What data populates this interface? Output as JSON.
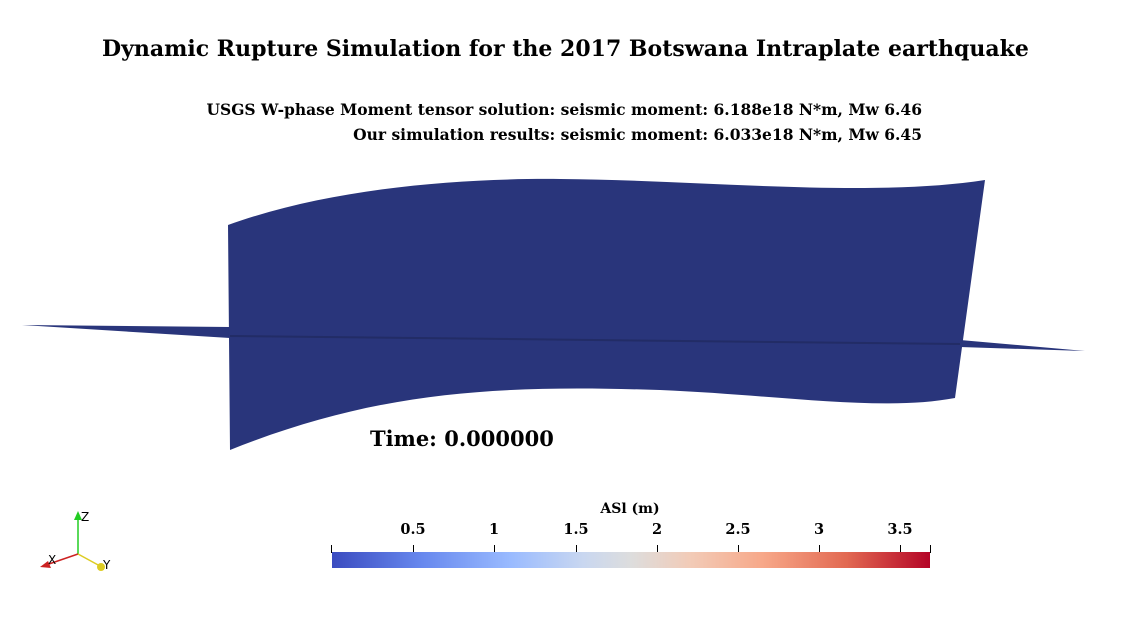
{
  "title": "Dynamic Rupture Simulation for the 2017 Botswana Intraplate earthquake",
  "subtitles": [
    "USGS W-phase Moment tensor solution: seismic moment: 6.188e18 N*m, Mw 6.46",
    "Our simulation results:  seismic moment: 6.033e18 N*m, Mw 6.45"
  ],
  "time_label": "Time: 0.000000",
  "colorbar": {
    "title": "ASl (m)",
    "ticks": [
      "0.5",
      "1",
      "1.5",
      "2",
      "2.5",
      "3",
      "3.5"
    ],
    "colormap": "cool-to-warm",
    "colors": {
      "low": "#3b4cc0",
      "mid": "#dddddd",
      "high": "#b40426"
    }
  },
  "fault_surface": {
    "color": "#29357b"
  },
  "axes": {
    "x": "X",
    "y": "Y",
    "z": "Z"
  },
  "icons": [
    "orientation-axes-icon"
  ]
}
